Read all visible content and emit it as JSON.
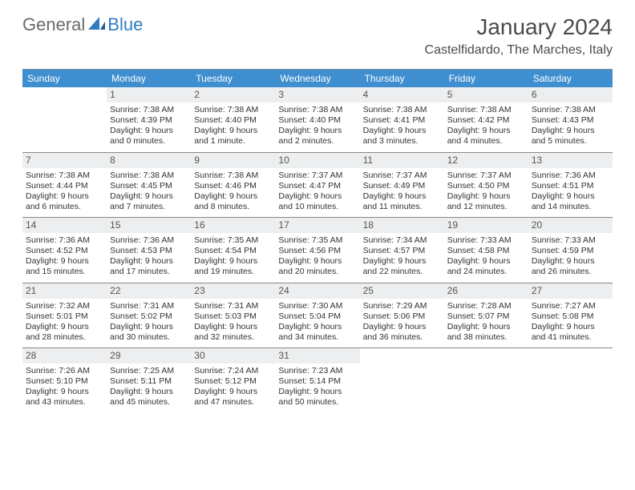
{
  "logo": {
    "general": "General",
    "blue": "Blue"
  },
  "title": "January 2024",
  "location": "Castelfidardo, The Marches, Italy",
  "colors": {
    "header_bg": "#3f8fd0",
    "header_text": "#ffffff",
    "daynum_bg": "#eceeef",
    "border": "#888888",
    "logo_gray": "#6a6a6a",
    "logo_blue": "#2f7cc0"
  },
  "day_headers": [
    "Sunday",
    "Monday",
    "Tuesday",
    "Wednesday",
    "Thursday",
    "Friday",
    "Saturday"
  ],
  "weeks": [
    [
      {
        "blank": true
      },
      {
        "n": "1",
        "sr": "Sunrise: 7:38 AM",
        "ss": "Sunset: 4:39 PM",
        "d1": "Daylight: 9 hours",
        "d2": "and 0 minutes."
      },
      {
        "n": "2",
        "sr": "Sunrise: 7:38 AM",
        "ss": "Sunset: 4:40 PM",
        "d1": "Daylight: 9 hours",
        "d2": "and 1 minute."
      },
      {
        "n": "3",
        "sr": "Sunrise: 7:38 AM",
        "ss": "Sunset: 4:40 PM",
        "d1": "Daylight: 9 hours",
        "d2": "and 2 minutes."
      },
      {
        "n": "4",
        "sr": "Sunrise: 7:38 AM",
        "ss": "Sunset: 4:41 PM",
        "d1": "Daylight: 9 hours",
        "d2": "and 3 minutes."
      },
      {
        "n": "5",
        "sr": "Sunrise: 7:38 AM",
        "ss": "Sunset: 4:42 PM",
        "d1": "Daylight: 9 hours",
        "d2": "and 4 minutes."
      },
      {
        "n": "6",
        "sr": "Sunrise: 7:38 AM",
        "ss": "Sunset: 4:43 PM",
        "d1": "Daylight: 9 hours",
        "d2": "and 5 minutes."
      }
    ],
    [
      {
        "n": "7",
        "sr": "Sunrise: 7:38 AM",
        "ss": "Sunset: 4:44 PM",
        "d1": "Daylight: 9 hours",
        "d2": "and 6 minutes."
      },
      {
        "n": "8",
        "sr": "Sunrise: 7:38 AM",
        "ss": "Sunset: 4:45 PM",
        "d1": "Daylight: 9 hours",
        "d2": "and 7 minutes."
      },
      {
        "n": "9",
        "sr": "Sunrise: 7:38 AM",
        "ss": "Sunset: 4:46 PM",
        "d1": "Daylight: 9 hours",
        "d2": "and 8 minutes."
      },
      {
        "n": "10",
        "sr": "Sunrise: 7:37 AM",
        "ss": "Sunset: 4:47 PM",
        "d1": "Daylight: 9 hours",
        "d2": "and 10 minutes."
      },
      {
        "n": "11",
        "sr": "Sunrise: 7:37 AM",
        "ss": "Sunset: 4:49 PM",
        "d1": "Daylight: 9 hours",
        "d2": "and 11 minutes."
      },
      {
        "n": "12",
        "sr": "Sunrise: 7:37 AM",
        "ss": "Sunset: 4:50 PM",
        "d1": "Daylight: 9 hours",
        "d2": "and 12 minutes."
      },
      {
        "n": "13",
        "sr": "Sunrise: 7:36 AM",
        "ss": "Sunset: 4:51 PM",
        "d1": "Daylight: 9 hours",
        "d2": "and 14 minutes."
      }
    ],
    [
      {
        "n": "14",
        "sr": "Sunrise: 7:36 AM",
        "ss": "Sunset: 4:52 PM",
        "d1": "Daylight: 9 hours",
        "d2": "and 15 minutes."
      },
      {
        "n": "15",
        "sr": "Sunrise: 7:36 AM",
        "ss": "Sunset: 4:53 PM",
        "d1": "Daylight: 9 hours",
        "d2": "and 17 minutes."
      },
      {
        "n": "16",
        "sr": "Sunrise: 7:35 AM",
        "ss": "Sunset: 4:54 PM",
        "d1": "Daylight: 9 hours",
        "d2": "and 19 minutes."
      },
      {
        "n": "17",
        "sr": "Sunrise: 7:35 AM",
        "ss": "Sunset: 4:56 PM",
        "d1": "Daylight: 9 hours",
        "d2": "and 20 minutes."
      },
      {
        "n": "18",
        "sr": "Sunrise: 7:34 AM",
        "ss": "Sunset: 4:57 PM",
        "d1": "Daylight: 9 hours",
        "d2": "and 22 minutes."
      },
      {
        "n": "19",
        "sr": "Sunrise: 7:33 AM",
        "ss": "Sunset: 4:58 PM",
        "d1": "Daylight: 9 hours",
        "d2": "and 24 minutes."
      },
      {
        "n": "20",
        "sr": "Sunrise: 7:33 AM",
        "ss": "Sunset: 4:59 PM",
        "d1": "Daylight: 9 hours",
        "d2": "and 26 minutes."
      }
    ],
    [
      {
        "n": "21",
        "sr": "Sunrise: 7:32 AM",
        "ss": "Sunset: 5:01 PM",
        "d1": "Daylight: 9 hours",
        "d2": "and 28 minutes."
      },
      {
        "n": "22",
        "sr": "Sunrise: 7:31 AM",
        "ss": "Sunset: 5:02 PM",
        "d1": "Daylight: 9 hours",
        "d2": "and 30 minutes."
      },
      {
        "n": "23",
        "sr": "Sunrise: 7:31 AM",
        "ss": "Sunset: 5:03 PM",
        "d1": "Daylight: 9 hours",
        "d2": "and 32 minutes."
      },
      {
        "n": "24",
        "sr": "Sunrise: 7:30 AM",
        "ss": "Sunset: 5:04 PM",
        "d1": "Daylight: 9 hours",
        "d2": "and 34 minutes."
      },
      {
        "n": "25",
        "sr": "Sunrise: 7:29 AM",
        "ss": "Sunset: 5:06 PM",
        "d1": "Daylight: 9 hours",
        "d2": "and 36 minutes."
      },
      {
        "n": "26",
        "sr": "Sunrise: 7:28 AM",
        "ss": "Sunset: 5:07 PM",
        "d1": "Daylight: 9 hours",
        "d2": "and 38 minutes."
      },
      {
        "n": "27",
        "sr": "Sunrise: 7:27 AM",
        "ss": "Sunset: 5:08 PM",
        "d1": "Daylight: 9 hours",
        "d2": "and 41 minutes."
      }
    ],
    [
      {
        "n": "28",
        "sr": "Sunrise: 7:26 AM",
        "ss": "Sunset: 5:10 PM",
        "d1": "Daylight: 9 hours",
        "d2": "and 43 minutes."
      },
      {
        "n": "29",
        "sr": "Sunrise: 7:25 AM",
        "ss": "Sunset: 5:11 PM",
        "d1": "Daylight: 9 hours",
        "d2": "and 45 minutes."
      },
      {
        "n": "30",
        "sr": "Sunrise: 7:24 AM",
        "ss": "Sunset: 5:12 PM",
        "d1": "Daylight: 9 hours",
        "d2": "and 47 minutes."
      },
      {
        "n": "31",
        "sr": "Sunrise: 7:23 AM",
        "ss": "Sunset: 5:14 PM",
        "d1": "Daylight: 9 hours",
        "d2": "and 50 minutes."
      },
      {
        "blank": true
      },
      {
        "blank": true
      },
      {
        "blank": true
      }
    ]
  ]
}
